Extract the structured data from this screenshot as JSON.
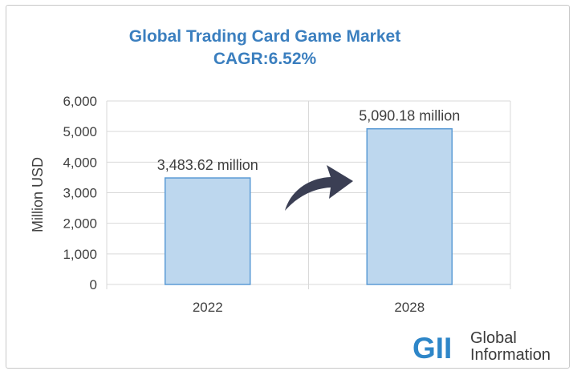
{
  "chart_data": {
    "type": "bar",
    "title": "Global Trading Card Game Market",
    "subtitle": "CAGR:6.52%",
    "categories": [
      "2022",
      "2028"
    ],
    "values": [
      3483.62,
      5090.18
    ],
    "data_labels": [
      "3,483.62 million",
      "5,090.18 million"
    ],
    "xlabel": "",
    "ylabel": "Million USD",
    "ylim": [
      0,
      6000
    ],
    "yticks": [
      0,
      1000,
      2000,
      3000,
      4000,
      5000,
      6000
    ],
    "ytick_labels": [
      "0",
      "1,000",
      "2,000",
      "3,000",
      "4,000",
      "5,000",
      "6,000"
    ],
    "grid": true,
    "colors": {
      "bar_fill": "#bdd7ee",
      "bar_stroke": "#5b9bd5",
      "title": "#3b7fbf",
      "arrow": "#3b3f54",
      "grid": "#d9d9d9"
    }
  },
  "logo": {
    "mark": "GII",
    "line1": "Global",
    "line2": "Information",
    "colors": {
      "mark": "#2e86c8",
      "text": "#3a3a3a"
    }
  },
  "icons": {
    "growth_arrow": "curved-arrow-icon"
  }
}
